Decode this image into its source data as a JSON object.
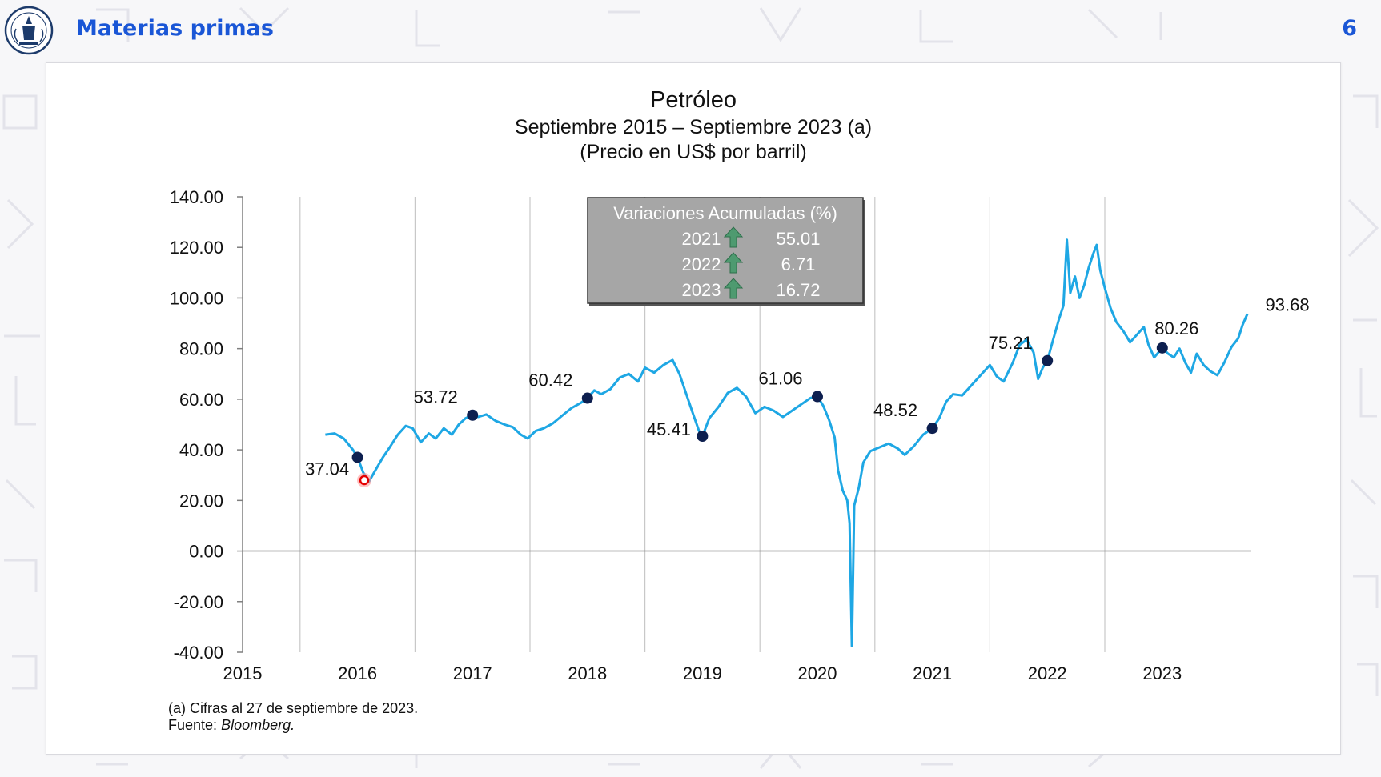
{
  "header": {
    "title": "Materias primas",
    "page_number": "6"
  },
  "footnote": {
    "note": "(a) Cifras al 27 de septiembre de 2023.",
    "source_label": "Fuente:",
    "source_name": "Bloomberg."
  },
  "colors": {
    "accent": "#1a56d6",
    "line": "#1ea7e4",
    "marker": "#0d1f4f",
    "table_bg": "#a6a6a6",
    "arrow": "#4e9a70"
  },
  "chart_data": {
    "type": "line",
    "title": "Petróleo",
    "subtitle": "Septiembre 2015 – Septiembre 2023 (a)",
    "units": "(Precio en US$ por barril)",
    "xlabel": "",
    "ylabel": "",
    "ylim": [
      -40,
      140
    ],
    "yticks": [
      "140.00",
      "120.00",
      "100.00",
      "80.00",
      "60.00",
      "40.00",
      "20.00",
      "0.00",
      "-20.00",
      "-40.00"
    ],
    "xticks": [
      "2015",
      "2016",
      "2017",
      "2018",
      "2019",
      "2020",
      "2021",
      "2022",
      "2023"
    ],
    "grid": "vertical",
    "series": [
      {
        "name": "Petróleo",
        "points": [
          [
            2015.72,
            46.0
          ],
          [
            2015.8,
            46.5
          ],
          [
            2015.88,
            44.5
          ],
          [
            2015.96,
            40.0
          ],
          [
            2016.0,
            37.04
          ],
          [
            2016.05,
            31.0
          ],
          [
            2016.1,
            27.5
          ],
          [
            2016.15,
            31.5
          ],
          [
            2016.22,
            37.0
          ],
          [
            2016.28,
            41.0
          ],
          [
            2016.35,
            46.0
          ],
          [
            2016.42,
            49.5
          ],
          [
            2016.48,
            48.5
          ],
          [
            2016.55,
            43.0
          ],
          [
            2016.62,
            46.5
          ],
          [
            2016.68,
            44.5
          ],
          [
            2016.75,
            48.5
          ],
          [
            2016.82,
            46.0
          ],
          [
            2016.88,
            50.0
          ],
          [
            2016.94,
            52.5
          ],
          [
            2017.0,
            53.72
          ],
          [
            2017.05,
            53.0
          ],
          [
            2017.12,
            54.0
          ],
          [
            2017.2,
            51.5
          ],
          [
            2017.28,
            50.0
          ],
          [
            2017.35,
            49.0
          ],
          [
            2017.42,
            46.0
          ],
          [
            2017.48,
            44.5
          ],
          [
            2017.55,
            47.5
          ],
          [
            2017.62,
            48.5
          ],
          [
            2017.7,
            50.5
          ],
          [
            2017.78,
            53.5
          ],
          [
            2017.86,
            56.5
          ],
          [
            2017.94,
            58.5
          ],
          [
            2018.0,
            60.42
          ],
          [
            2018.06,
            63.5
          ],
          [
            2018.12,
            62.0
          ],
          [
            2018.2,
            64.0
          ],
          [
            2018.28,
            68.5
          ],
          [
            2018.36,
            70.0
          ],
          [
            2018.44,
            67.0
          ],
          [
            2018.5,
            72.5
          ],
          [
            2018.58,
            70.5
          ],
          [
            2018.66,
            73.5
          ],
          [
            2018.74,
            75.5
          ],
          [
            2018.8,
            70.0
          ],
          [
            2018.86,
            62.0
          ],
          [
            2018.92,
            54.0
          ],
          [
            2018.97,
            47.5
          ],
          [
            2019.0,
            45.41
          ],
          [
            2019.06,
            52.5
          ],
          [
            2019.14,
            57.0
          ],
          [
            2019.22,
            62.5
          ],
          [
            2019.3,
            64.5
          ],
          [
            2019.38,
            61.0
          ],
          [
            2019.46,
            54.5
          ],
          [
            2019.54,
            57.0
          ],
          [
            2019.62,
            55.5
          ],
          [
            2019.7,
            53.0
          ],
          [
            2019.78,
            55.5
          ],
          [
            2019.86,
            58.0
          ],
          [
            2019.94,
            60.5
          ],
          [
            2020.0,
            61.06
          ],
          [
            2020.05,
            57.5
          ],
          [
            2020.1,
            52.0
          ],
          [
            2020.15,
            45.0
          ],
          [
            2020.18,
            32.0
          ],
          [
            2020.22,
            24.0
          ],
          [
            2020.26,
            20.0
          ],
          [
            2020.28,
            11.0
          ],
          [
            2020.3,
            -37.6
          ],
          [
            2020.32,
            18.0
          ],
          [
            2020.36,
            25.0
          ],
          [
            2020.4,
            35.0
          ],
          [
            2020.46,
            39.5
          ],
          [
            2020.54,
            41.0
          ],
          [
            2020.62,
            42.5
          ],
          [
            2020.7,
            40.5
          ],
          [
            2020.76,
            38.0
          ],
          [
            2020.84,
            41.5
          ],
          [
            2020.92,
            46.0
          ],
          [
            2021.0,
            48.52
          ],
          [
            2021.06,
            52.5
          ],
          [
            2021.12,
            59.0
          ],
          [
            2021.18,
            62.0
          ],
          [
            2021.26,
            61.5
          ],
          [
            2021.34,
            65.5
          ],
          [
            2021.42,
            69.5
          ],
          [
            2021.5,
            73.5
          ],
          [
            2021.56,
            69.0
          ],
          [
            2021.62,
            67.0
          ],
          [
            2021.7,
            74.5
          ],
          [
            2021.76,
            81.5
          ],
          [
            2021.82,
            83.5
          ],
          [
            2021.88,
            78.5
          ],
          [
            2021.92,
            68.0
          ],
          [
            2021.96,
            72.5
          ],
          [
            2022.0,
            75.21
          ],
          [
            2022.05,
            83.5
          ],
          [
            2022.1,
            91.5
          ],
          [
            2022.14,
            97.0
          ],
          [
            2022.17,
            123.0
          ],
          [
            2022.2,
            102.0
          ],
          [
            2022.24,
            108.5
          ],
          [
            2022.28,
            100.0
          ],
          [
            2022.32,
            105.0
          ],
          [
            2022.36,
            112.0
          ],
          [
            2022.4,
            117.5
          ],
          [
            2022.43,
            121.0
          ],
          [
            2022.46,
            111.0
          ],
          [
            2022.5,
            104.0
          ],
          [
            2022.55,
            96.0
          ],
          [
            2022.6,
            90.5
          ],
          [
            2022.66,
            87.0
          ],
          [
            2022.72,
            82.5
          ],
          [
            2022.78,
            85.5
          ],
          [
            2022.84,
            88.5
          ],
          [
            2022.88,
            81.5
          ],
          [
            2022.93,
            76.5
          ],
          [
            2023.0,
            80.26
          ],
          [
            2023.05,
            78.0
          ],
          [
            2023.1,
            76.5
          ],
          [
            2023.15,
            80.0
          ],
          [
            2023.2,
            74.5
          ],
          [
            2023.25,
            70.5
          ],
          [
            2023.3,
            78.0
          ],
          [
            2023.36,
            73.5
          ],
          [
            2023.42,
            71.0
          ],
          [
            2023.48,
            69.5
          ],
          [
            2023.54,
            74.5
          ],
          [
            2023.6,
            80.5
          ],
          [
            2023.66,
            84.0
          ],
          [
            2023.7,
            89.5
          ],
          [
            2023.74,
            93.68
          ]
        ]
      }
    ],
    "annotations": [
      {
        "x": 2016.0,
        "y": 37.04,
        "label": "37.04",
        "anchor": "below-left"
      },
      {
        "x": 2017.0,
        "y": 53.72,
        "label": "53.72",
        "anchor": "above-left"
      },
      {
        "x": 2018.0,
        "y": 60.42,
        "label": "60.42",
        "anchor": "above-left"
      },
      {
        "x": 2019.0,
        "y": 45.41,
        "label": "45.41",
        "anchor": "left"
      },
      {
        "x": 2020.0,
        "y": 61.06,
        "label": "61.06",
        "anchor": "above-left"
      },
      {
        "x": 2021.0,
        "y": 48.52,
        "label": "48.52",
        "anchor": "above-left"
      },
      {
        "x": 2022.0,
        "y": 75.21,
        "label": "75.21",
        "anchor": "above-left"
      },
      {
        "x": 2023.0,
        "y": 80.26,
        "label": "80.26",
        "anchor": "above"
      },
      {
        "x": 2023.74,
        "y": 93.68,
        "label": "93.68",
        "anchor": "right",
        "marker": false
      }
    ],
    "table": {
      "title": "Variaciones Acumuladas (%)",
      "rows": [
        {
          "year": "2021",
          "direction": "up",
          "value": "55.01"
        },
        {
          "year": "2022",
          "direction": "up",
          "value": "6.71"
        },
        {
          "year": "2023",
          "direction": "up",
          "value": "16.72"
        }
      ]
    }
  }
}
